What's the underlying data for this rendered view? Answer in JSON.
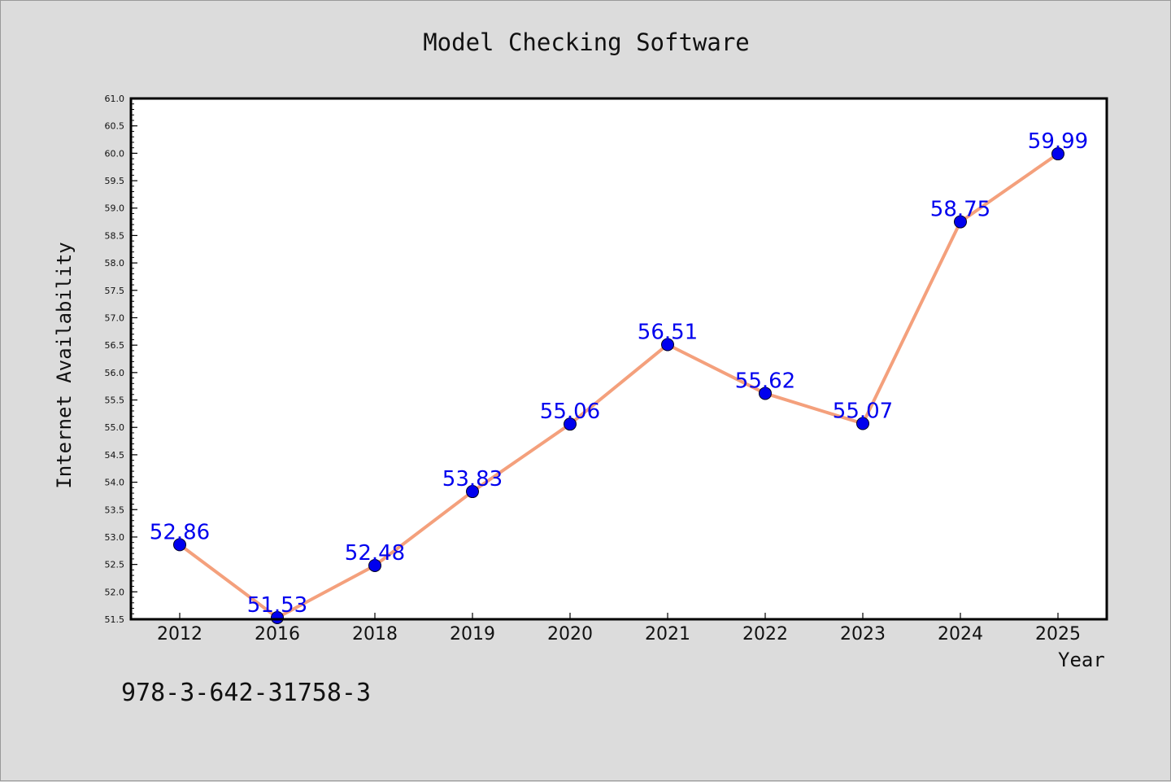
{
  "chart_data": {
    "type": "line",
    "title": "Model Checking Software",
    "xlabel": "Year",
    "ylabel": "Internet Availability",
    "categories": [
      "2012",
      "2016",
      "2018",
      "2019",
      "2020",
      "2021",
      "2022",
      "2023",
      "2024",
      "2025"
    ],
    "series": [
      {
        "values": [
          52.86,
          51.53,
          52.48,
          53.83,
          55.06,
          56.51,
          55.62,
          55.07,
          58.75,
          59.99
        ],
        "data_labels": [
          "52.86",
          "51.53",
          "52.48",
          "53.83",
          "55.06",
          "56.51",
          "55.62",
          "55.07",
          "58.75",
          "59.99"
        ]
      }
    ],
    "ylim": [
      51.5,
      61.0
    ],
    "yticks": [
      "51.5",
      "52.0",
      "52.5",
      "53.0",
      "53.5",
      "54.0",
      "54.5",
      "55.0",
      "55.5",
      "56.0",
      "56.5",
      "57.0",
      "57.5",
      "58.0",
      "58.5",
      "59.0",
      "59.5",
      "60.0",
      "60.5",
      "61.0"
    ],
    "grid": false,
    "colors": {
      "line": "#f4a07c",
      "marker": "#0000ee",
      "label": "#0000ee",
      "background": "#dcdcdc",
      "plot_background": "#ffffff"
    }
  },
  "annotation": "978-3-642-31758-3"
}
